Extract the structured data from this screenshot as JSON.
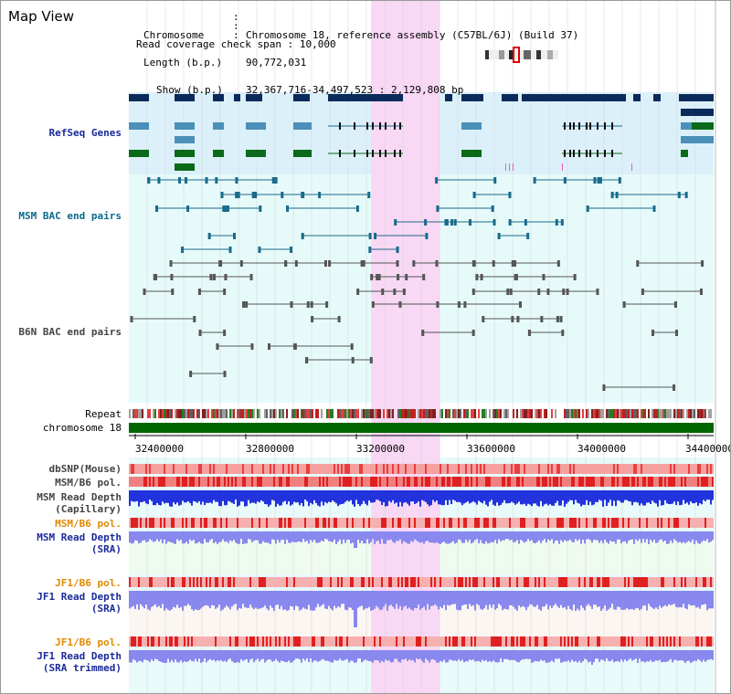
{
  "app": {
    "title": "Map View"
  },
  "info": {
    "chromosome_key": "Chromosome",
    "chromosome_val": "Chromosome 18, reference assembly (C57BL/6J) (Build 37)",
    "length_key": "Length (b.p.)",
    "length_val": "90,772,031",
    "show_key": "Show (b.p.)",
    "show_val": "32,367,716-34,497,523 : 2,129,808 bp",
    "coverage_key": "Read coverage check span",
    "coverage_val": "10,000"
  },
  "tracks": {
    "refseq": "RefSeq Genes",
    "msm_bac": "MSM BAC end pairs",
    "b6n_bac": "B6N BAC end pairs",
    "repeat": "Repeat",
    "chromosome": "chromosome 18",
    "dbsnp": "dbSNP(Mouse)",
    "msm_b6_pol_1": "MSM/B6 pol.",
    "msm_read_depth_cap_1": "MSM Read Depth",
    "msm_read_depth_cap_2": "(Capillary)",
    "msm_b6_pol_2": "MSM/B6 pol.",
    "msm_read_depth_sra_1": "MSM Read Depth",
    "msm_read_depth_sra_2": "(SRA)",
    "jf1_b6_pol_1": "JF1/B6 pol.",
    "jf1_read_depth_sra_1": "JF1 Read Depth",
    "jf1_read_depth_sra_2": "(SRA)",
    "jf1_b6_pol_2": "JF1/B6 pol.",
    "jf1_read_depth_trim_1": "JF1 Read Depth",
    "jf1_read_depth_trim_2": "(SRA trimmed)"
  },
  "axis_ticks": [
    "32400000",
    "32800000",
    "33200000",
    "33600000",
    "34000000",
    "34400000"
  ],
  "colors": {
    "refseq_bg": "#dcf0fa",
    "bac_bg": "#e6fafa",
    "highlight": "#f8d8f4",
    "navy": "#0a2a5a",
    "steel": "#4a90b8",
    "green": "#0a6a1a",
    "teal": "#1a6a8a",
    "gray": "#555555",
    "chrom": "#006600",
    "label_navy": "#1a2a9a",
    "label_teal": "#0a6a8a",
    "label_orange": "#e08a00",
    "depth_blue": "#2233dd",
    "depth_light": "#8888ee"
  },
  "highlight_region": {
    "start": 33250000,
    "end": 33500000
  },
  "view": {
    "start": 32367716,
    "end": 34497523
  }
}
